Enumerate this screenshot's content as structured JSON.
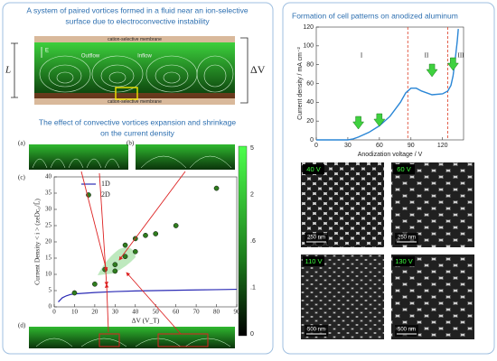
{
  "left_panel": {
    "title": [
      "A system of paired vortices formed in a fluid near an ion-selective",
      "surface due to electroconvective instability"
    ],
    "diagram": {
      "membrane_top": "cation-selective membrane",
      "membrane_bottom": "cation-selective membrane",
      "field": "E",
      "height": "L",
      "voltage": "ΔV",
      "outflow": "Outflow",
      "inflow": "Inflow"
    },
    "subtitle": [
      "The effect of convective vortices expansion and shrinkage",
      "on the current density"
    ],
    "panel_labels": [
      "(a)",
      "(b)",
      "(c)",
      "(d)"
    ],
    "colorbar_labels": [
      "5",
      "2",
      ".6",
      ".1",
      "0"
    ]
  },
  "right_panel": {
    "title": "Formation of cell patterns on anodized aluminum",
    "regions": [
      "I",
      "II",
      "III"
    ],
    "micrographs": [
      {
        "voltage": "40 V",
        "scale": "250 nm"
      },
      {
        "voltage": "60 V",
        "scale": "250 nm"
      },
      {
        "voltage": "110 V",
        "scale": "500 nm"
      },
      {
        "voltage": "130 V",
        "scale": "500 nm"
      }
    ]
  },
  "chart_data": [
    {
      "type": "line",
      "xlabel": "ΔV (V_T)",
      "ylabel": "Current Density < i > (zeDc₀/L̃)",
      "xlim": [
        0,
        90
      ],
      "xticks": [
        0,
        10,
        20,
        30,
        40,
        50,
        60,
        70,
        80,
        90
      ],
      "ylim": [
        0,
        40
      ],
      "yticks": [
        0,
        5,
        10,
        15,
        20,
        25,
        30,
        35,
        40
      ],
      "series": [
        {
          "name": "1D",
          "style": "line",
          "color": "#2b2bb5",
          "x": [
            2,
            4,
            6,
            8,
            10,
            20,
            30,
            40,
            50,
            60,
            70,
            80,
            90
          ],
          "values": [
            1.5,
            2.8,
            3.4,
            3.8,
            4.0,
            4.4,
            4.7,
            4.9,
            5.0,
            5.1,
            5.2,
            5.3,
            5.4
          ]
        },
        {
          "name": "2D",
          "style": "points",
          "color": "#2f7d1e",
          "x": [
            10,
            20,
            25,
            30,
            30,
            35,
            35,
            40,
            40,
            45,
            50,
            60,
            80
          ],
          "values": [
            4.3,
            7,
            11.5,
            13,
            11,
            15.5,
            19,
            17,
            21,
            22,
            22.5,
            25,
            36.5
          ]
        }
      ]
    },
    {
      "type": "line",
      "xlabel": "Anodization voltage / V",
      "ylabel": "Current density / mA cm⁻²",
      "xlim": [
        0,
        140
      ],
      "xticks": [
        0,
        30,
        60,
        90,
        120
      ],
      "ylim": [
        0,
        120
      ],
      "yticks": [
        0,
        20,
        40,
        60,
        80,
        100,
        120
      ],
      "color": "#2a86d6",
      "x": [
        0,
        20,
        30,
        35,
        40,
        50,
        60,
        70,
        80,
        85,
        90,
        95,
        100,
        110,
        120,
        125,
        128,
        130,
        132,
        134,
        135
      ],
      "values": [
        0,
        0,
        0,
        1,
        3,
        8,
        15,
        25,
        40,
        50,
        55,
        55,
        52,
        48,
        49,
        52,
        58,
        68,
        85,
        105,
        118
      ],
      "vlines": [
        87,
        125
      ],
      "vline_color": "#e0503a",
      "arrows_x": [
        40,
        60,
        110,
        130
      ],
      "arrow_color": "#3fd13f"
    }
  ]
}
